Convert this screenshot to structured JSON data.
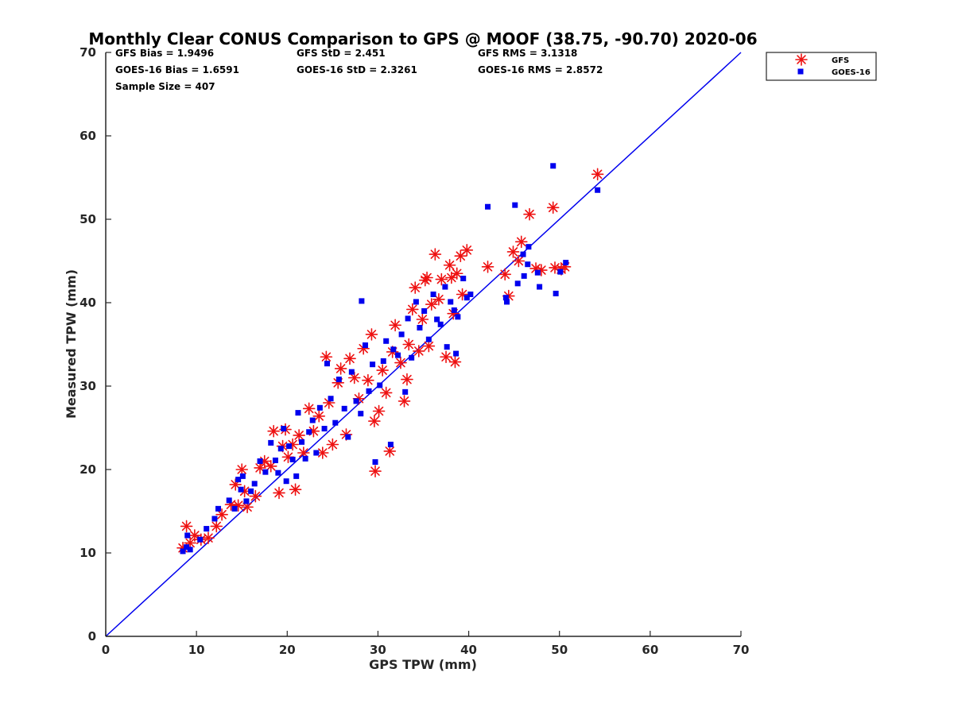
{
  "chart_data": {
    "type": "scatter",
    "title": "Monthly Clear CONUS Comparison to GPS @ MOOF (38.75, -90.70) 2020-06",
    "xlabel": "GPS TPW (mm)",
    "ylabel": "Measured TPW (mm)",
    "xlim": [
      0,
      70
    ],
    "ylim": [
      0,
      70
    ],
    "xticks": [
      "0",
      "10",
      "20",
      "30",
      "40",
      "50",
      "60",
      "70"
    ],
    "yticks": [
      "0",
      "10",
      "20",
      "30",
      "40",
      "50",
      "60",
      "70"
    ],
    "grid": false,
    "legend_placement": "outside-top-right",
    "stats": [
      "GFS Bias = 1.9496",
      "GFS StD = 2.451",
      "GFS RMS = 3.1318",
      "GOES-16 Bias = 1.6591",
      "GOES-16 StD = 2.3261",
      "GOES-16 RMS = 2.8572",
      "Sample Size = 407"
    ],
    "reference_line": {
      "x": [
        0,
        70
      ],
      "y": [
        0,
        70
      ],
      "color": "#0000ee"
    },
    "series": [
      {
        "name": "GFS",
        "marker": "asterisk",
        "color": "#ee1111",
        "points": [
          [
            8.5,
            10.6
          ],
          [
            8.9,
            13.2
          ],
          [
            9.3,
            11.2
          ],
          [
            9.8,
            12.1
          ],
          [
            10.5,
            11.6
          ],
          [
            11.3,
            11.8
          ],
          [
            12.2,
            13.2
          ],
          [
            12.8,
            14.6
          ],
          [
            13.8,
            15.8
          ],
          [
            14.3,
            18.2
          ],
          [
            14.6,
            15.7
          ],
          [
            15.0,
            20.0
          ],
          [
            15.3,
            17.4
          ],
          [
            15.6,
            15.5
          ],
          [
            16.5,
            16.8
          ],
          [
            17.0,
            20.2
          ],
          [
            17.5,
            21.0
          ],
          [
            18.2,
            20.4
          ],
          [
            18.5,
            24.6
          ],
          [
            19.1,
            17.2
          ],
          [
            19.5,
            22.8
          ],
          [
            19.8,
            24.8
          ],
          [
            20.1,
            21.5
          ],
          [
            20.6,
            23.0
          ],
          [
            20.9,
            17.6
          ],
          [
            21.3,
            24.1
          ],
          [
            21.8,
            22.0
          ],
          [
            22.4,
            27.3
          ],
          [
            22.9,
            24.6
          ],
          [
            23.5,
            26.4
          ],
          [
            23.9,
            22.0
          ],
          [
            24.3,
            33.5
          ],
          [
            24.6,
            28.0
          ],
          [
            25.0,
            23.0
          ],
          [
            25.6,
            30.4
          ],
          [
            25.9,
            32.1
          ],
          [
            26.5,
            24.2
          ],
          [
            26.9,
            33.3
          ],
          [
            27.4,
            31.0
          ],
          [
            27.9,
            28.5
          ],
          [
            28.4,
            34.5
          ],
          [
            28.9,
            30.7
          ],
          [
            29.3,
            36.2
          ],
          [
            29.6,
            25.8
          ],
          [
            29.7,
            19.8
          ],
          [
            30.1,
            27.0
          ],
          [
            30.5,
            31.9
          ],
          [
            30.9,
            29.2
          ],
          [
            31.3,
            22.2
          ],
          [
            31.6,
            34.1
          ],
          [
            31.9,
            37.3
          ],
          [
            32.5,
            32.8
          ],
          [
            32.9,
            28.2
          ],
          [
            33.2,
            30.8
          ],
          [
            33.4,
            35.0
          ],
          [
            33.8,
            39.2
          ],
          [
            34.1,
            41.8
          ],
          [
            34.5,
            34.2
          ],
          [
            34.9,
            38.0
          ],
          [
            35.2,
            42.7
          ],
          [
            35.4,
            43.0
          ],
          [
            35.6,
            34.8
          ],
          [
            35.9,
            39.8
          ],
          [
            36.3,
            45.8
          ],
          [
            36.7,
            40.4
          ],
          [
            37.0,
            42.8
          ],
          [
            37.5,
            33.5
          ],
          [
            37.9,
            44.5
          ],
          [
            38.1,
            43.0
          ],
          [
            38.3,
            38.7
          ],
          [
            38.5,
            32.9
          ],
          [
            38.7,
            43.5
          ],
          [
            39.1,
            45.6
          ],
          [
            39.3,
            41.0
          ],
          [
            39.8,
            46.3
          ],
          [
            42.1,
            44.3
          ],
          [
            44.0,
            43.4
          ],
          [
            44.4,
            40.8
          ],
          [
            44.9,
            46.1
          ],
          [
            45.5,
            45.0
          ],
          [
            45.8,
            47.3
          ],
          [
            46.7,
            50.6
          ],
          [
            47.4,
            44.1
          ],
          [
            48.0,
            43.9
          ],
          [
            49.3,
            51.4
          ],
          [
            49.5,
            44.2
          ],
          [
            50.2,
            44.0
          ],
          [
            50.6,
            44.3
          ],
          [
            54.2,
            55.4
          ]
        ]
      },
      {
        "name": "GOES-16",
        "marker": "square",
        "color": "#0000ee",
        "points": [
          [
            8.5,
            10.2
          ],
          [
            8.9,
            10.7
          ],
          [
            9.0,
            12.1
          ],
          [
            9.3,
            10.4
          ],
          [
            10.4,
            11.6
          ],
          [
            11.1,
            12.9
          ],
          [
            12.0,
            14.1
          ],
          [
            12.4,
            15.3
          ],
          [
            13.6,
            16.3
          ],
          [
            14.2,
            15.3
          ],
          [
            14.6,
            18.8
          ],
          [
            14.9,
            17.6
          ],
          [
            15.1,
            19.2
          ],
          [
            15.5,
            16.2
          ],
          [
            16.0,
            17.4
          ],
          [
            16.4,
            18.3
          ],
          [
            17.0,
            21.0
          ],
          [
            17.6,
            19.7
          ],
          [
            18.2,
            23.2
          ],
          [
            18.7,
            21.1
          ],
          [
            19.0,
            19.6
          ],
          [
            19.3,
            22.5
          ],
          [
            19.6,
            24.9
          ],
          [
            19.9,
            18.6
          ],
          [
            20.2,
            22.8
          ],
          [
            20.6,
            21.2
          ],
          [
            21.0,
            19.2
          ],
          [
            21.2,
            26.8
          ],
          [
            21.6,
            23.3
          ],
          [
            22.0,
            21.3
          ],
          [
            22.4,
            24.5
          ],
          [
            22.8,
            25.9
          ],
          [
            23.2,
            22.0
          ],
          [
            23.6,
            27.4
          ],
          [
            24.1,
            24.9
          ],
          [
            24.4,
            32.7
          ],
          [
            24.8,
            28.5
          ],
          [
            25.3,
            25.6
          ],
          [
            25.7,
            30.8
          ],
          [
            26.3,
            27.3
          ],
          [
            26.7,
            23.9
          ],
          [
            27.1,
            31.7
          ],
          [
            27.6,
            28.2
          ],
          [
            28.1,
            26.7
          ],
          [
            28.2,
            40.2
          ],
          [
            28.6,
            34.9
          ],
          [
            29.0,
            29.4
          ],
          [
            29.4,
            32.6
          ],
          [
            29.7,
            20.9
          ],
          [
            30.2,
            30.1
          ],
          [
            30.6,
            33.0
          ],
          [
            30.9,
            35.4
          ],
          [
            31.4,
            23.0
          ],
          [
            31.7,
            34.4
          ],
          [
            32.2,
            33.7
          ],
          [
            32.6,
            36.2
          ],
          [
            33.0,
            29.3
          ],
          [
            33.3,
            38.1
          ],
          [
            33.7,
            33.4
          ],
          [
            34.2,
            40.1
          ],
          [
            34.6,
            37.0
          ],
          [
            35.1,
            39.0
          ],
          [
            35.6,
            35.6
          ],
          [
            36.1,
            41.0
          ],
          [
            36.5,
            38.0
          ],
          [
            36.9,
            37.4
          ],
          [
            37.4,
            41.9
          ],
          [
            37.6,
            34.7
          ],
          [
            38.0,
            40.1
          ],
          [
            38.4,
            39.1
          ],
          [
            38.6,
            33.9
          ],
          [
            38.8,
            38.3
          ],
          [
            39.4,
            42.9
          ],
          [
            39.8,
            40.6
          ],
          [
            40.2,
            41.0
          ],
          [
            42.1,
            51.5
          ],
          [
            44.1,
            40.6
          ],
          [
            44.2,
            40.1
          ],
          [
            45.1,
            51.7
          ],
          [
            45.4,
            42.3
          ],
          [
            46.0,
            45.8
          ],
          [
            46.1,
            43.2
          ],
          [
            46.5,
            44.6
          ],
          [
            46.6,
            46.7
          ],
          [
            47.6,
            43.6
          ],
          [
            47.8,
            41.9
          ],
          [
            49.3,
            56.4
          ],
          [
            49.6,
            41.1
          ],
          [
            50.1,
            43.7
          ],
          [
            50.7,
            44.8
          ],
          [
            54.2,
            53.5
          ]
        ]
      }
    ]
  }
}
